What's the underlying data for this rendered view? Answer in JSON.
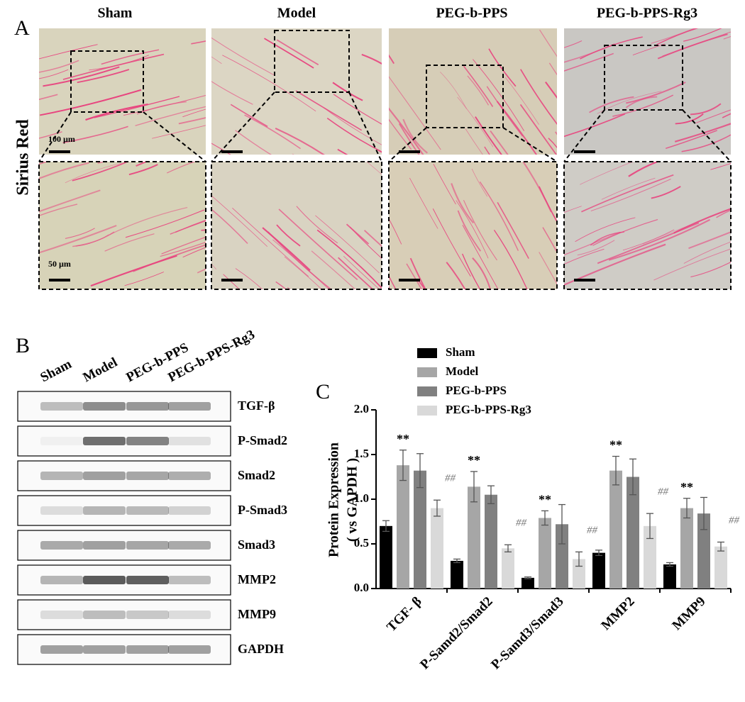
{
  "panel_a": {
    "label": "A",
    "columns": [
      "Sham",
      "Model",
      "PEG-b-PPS",
      "PEG-b-PPS-Rg3"
    ],
    "row_label": "Sirius Red",
    "scale_top": "100 µm",
    "scale_bottom": "50 µm"
  },
  "panel_b": {
    "label": "B",
    "lanes": [
      "Sham",
      "Model",
      "PEG-b-PPS",
      "PEG-b-PPS-Rg3"
    ],
    "proteins": [
      "TGF-β",
      "P-Smad2",
      "Smad2",
      "P-Smad3",
      "Smad3",
      "MMP2",
      "MMP9",
      "GAPDH"
    ]
  },
  "chart_data": {
    "type": "bar",
    "panel_label": "C",
    "y_label": "Protein Expression",
    "y_label_2": "( vs GAPDH )",
    "categories": [
      "TGF- β",
      "P-Samd2/Smad2",
      "P-Samd3/Smad3",
      "MMP2",
      "MMP9"
    ],
    "series": [
      {
        "name": "Sham",
        "color": "#000000",
        "values": [
          0.7,
          0.31,
          0.12,
          0.4,
          0.27
        ],
        "errors": [
          0.06,
          0.02,
          0.01,
          0.03,
          0.02
        ]
      },
      {
        "name": "Model",
        "color": "#a6a6a6",
        "values": [
          1.38,
          1.14,
          0.79,
          1.32,
          0.9
        ],
        "errors": [
          0.17,
          0.17,
          0.08,
          0.16,
          0.11
        ],
        "significance": [
          "**",
          "**",
          "**",
          "**",
          "**"
        ]
      },
      {
        "name": "PEG-b-PPS",
        "color": "#808080",
        "values": [
          1.32,
          1.05,
          0.72,
          1.25,
          0.84
        ],
        "errors": [
          0.19,
          0.1,
          0.22,
          0.2,
          0.18
        ]
      },
      {
        "name": "PEG-b-PPS-Rg3",
        "color": "#d9d9d9",
        "values": [
          0.9,
          0.45,
          0.33,
          0.7,
          0.47
        ],
        "errors": [
          0.09,
          0.04,
          0.08,
          0.14,
          0.05
        ],
        "significance": [
          "##",
          "##",
          "##",
          "##",
          "##"
        ]
      }
    ],
    "ylim": [
      0,
      2
    ],
    "yticks": [
      {
        "value": 0,
        "label": "0.0"
      },
      0.5,
      {
        "value": 1,
        "label": "1.0"
      },
      1.5,
      {
        "value": 2,
        "label": "2.0"
      }
    ],
    "legend": "top-left"
  }
}
